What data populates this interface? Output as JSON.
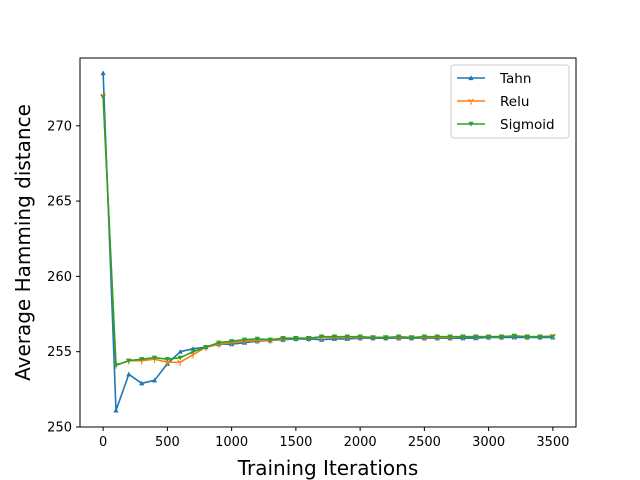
{
  "chart_data": {
    "type": "line",
    "title": "",
    "xlabel": "Training Iterations",
    "ylabel": "Average Hamming distance",
    "xlim": [
      -180,
      3680
    ],
    "ylim": [
      250,
      274.5
    ],
    "xticks": [
      0,
      500,
      1000,
      1500,
      2000,
      2500,
      3000,
      3500
    ],
    "yticks": [
      250,
      255,
      260,
      265,
      270
    ],
    "grid": false,
    "legend_position": "top-right",
    "x": [
      0,
      100,
      200,
      300,
      400,
      500,
      600,
      700,
      800,
      900,
      1000,
      1100,
      1200,
      1300,
      1400,
      1500,
      1600,
      1700,
      1800,
      1900,
      2000,
      2100,
      2200,
      2300,
      2400,
      2500,
      2600,
      2700,
      2800,
      2900,
      3000,
      3100,
      3200,
      3300,
      3400,
      3500
    ],
    "series": [
      {
        "name": "Tahn",
        "color": "#1f77b4",
        "marker": "triangle-up",
        "values": [
          273.5,
          251.1,
          253.5,
          252.9,
          253.1,
          254.2,
          255.0,
          255.2,
          255.3,
          255.5,
          255.5,
          255.6,
          255.7,
          255.75,
          255.8,
          255.85,
          255.85,
          255.8,
          255.85,
          255.85,
          255.9,
          255.9,
          255.9,
          255.9,
          255.9,
          255.9,
          255.9,
          255.9,
          255.9,
          255.9,
          255.95,
          255.95,
          255.95,
          255.95,
          255.95,
          255.95
        ]
      },
      {
        "name": "Relu",
        "color": "#ff7f0e",
        "marker": "tri-down",
        "values": [
          272.0,
          254.1,
          254.4,
          254.4,
          254.5,
          254.3,
          254.3,
          254.8,
          255.3,
          255.5,
          255.6,
          255.7,
          255.75,
          255.75,
          255.85,
          255.9,
          255.9,
          255.95,
          255.95,
          255.95,
          255.95,
          255.95,
          255.95,
          255.95,
          255.95,
          255.95,
          255.95,
          255.95,
          256.0,
          256.0,
          256.0,
          256.0,
          256.05,
          256.0,
          256.0,
          256.05
        ]
      },
      {
        "name": "Sigmoid",
        "color": "#2ca02c",
        "marker": "triangle-down",
        "values": [
          271.9,
          254.1,
          254.4,
          254.5,
          254.6,
          254.5,
          254.6,
          255.0,
          255.3,
          255.6,
          255.7,
          255.8,
          255.85,
          255.8,
          255.9,
          255.9,
          255.9,
          256.0,
          256.0,
          256.0,
          256.0,
          255.95,
          255.95,
          256.0,
          255.95,
          256.0,
          256.0,
          256.0,
          256.0,
          256.0,
          256.0,
          256.0,
          256.05,
          256.0,
          256.0,
          256.0
        ]
      }
    ]
  }
}
